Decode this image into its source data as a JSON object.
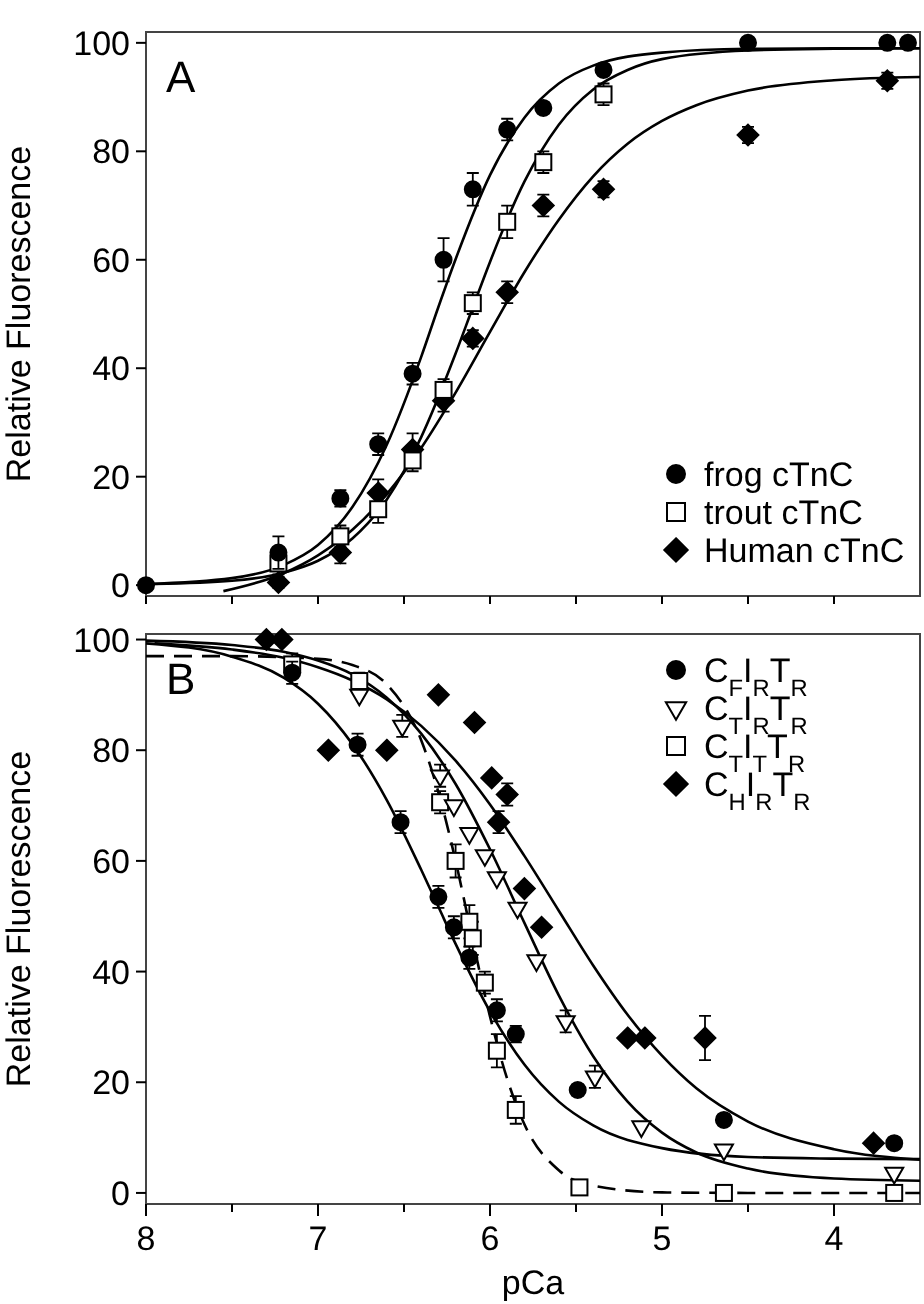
{
  "chart_data": [
    {
      "type": "scatter",
      "ylabel": "Relative Fluorescence",
      "annotations": [
        "A"
      ],
      "xlim": [
        8,
        3.5
      ],
      "ylim": [
        -2,
        102
      ],
      "xticks": [
        {
          "value": 8,
          "label": null
        },
        {
          "value": 7.5,
          "label": null
        },
        {
          "value": 7,
          "label": null
        },
        {
          "value": 6.5,
          "label": null
        },
        {
          "value": 6,
          "label": null
        },
        {
          "value": 5.5,
          "label": null
        },
        {
          "value": 5,
          "label": null
        },
        {
          "value": 4.5,
          "label": null
        },
        {
          "value": 4,
          "label": null
        }
      ],
      "yticks": [
        0,
        20,
        40,
        60,
        80,
        100
      ],
      "tick_labels": "y",
      "legend": "bottom right",
      "grid": false,
      "series": [
        {
          "type": "line",
          "color": "#000000",
          "marker": "none",
          "line_style": "solid",
          "x": [
            8,
            7.5,
            7.2,
            7.0,
            6.8,
            6.6,
            6.4,
            6.3,
            6.2,
            6.0,
            5.8,
            5.6,
            5.4,
            5.0,
            4.5,
            4.0,
            3.5
          ],
          "values": [
            0.2,
            1.3,
            3.7,
            7.4,
            14.4,
            25.9,
            42.1,
            51.3,
            60.1,
            75.6,
            86.2,
            92.5,
            95.8,
            98.2,
            98.9,
            99,
            99
          ]
        },
        {
          "type": "line",
          "color": "#000000",
          "marker": "none",
          "line_style": "solid",
          "x": [
            7.95,
            7.5,
            7.2,
            7.0,
            6.8,
            6.6,
            6.4,
            6.2,
            6.1,
            6.0,
            5.8,
            5.6,
            5.4,
            5.2,
            5.0,
            4.5,
            4.0,
            3.5
          ],
          "values": [
            0.2,
            0.8,
            2.3,
            4.5,
            8.6,
            15.8,
            27.3,
            42.7,
            51.2,
            59.6,
            74.4,
            84.9,
            91.4,
            95,
            97,
            98.6,
            98.9,
            99
          ]
        },
        {
          "type": "line",
          "color": "#000000",
          "marker": "none",
          "line_style": "solid",
          "x": [
            7.55,
            7.2,
            7.0,
            6.8,
            6.6,
            6.4,
            6.2,
            6.0,
            5.8,
            5.6,
            5.4,
            5.2,
            5.0,
            4.8,
            4.5,
            4.0,
            3.5
          ],
          "values": [
            -1.1,
            2.2,
            5.5,
            10.2,
            16.8,
            25.3,
            35.5,
            46.7,
            57.7,
            67.4,
            75.4,
            81.4,
            85.6,
            88.5,
            91.2,
            93.1,
            93.7
          ]
        },
        {
          "type": "scatter",
          "name": "frog cTnC",
          "color": "#000000",
          "marker": "circle",
          "x": [
            8,
            7.23,
            6.87,
            6.65,
            6.45,
            6.27,
            6.1,
            5.9,
            5.69,
            5.34,
            4.5,
            3.69,
            3.57
          ],
          "values": [
            0,
            6,
            16,
            26,
            39,
            60,
            73,
            84,
            88,
            95,
            100,
            100,
            100
          ],
          "errors": [
            null,
            3,
            1.5,
            2,
            2,
            4,
            3,
            2,
            1,
            1,
            1,
            1,
            1
          ]
        },
        {
          "type": "scatter",
          "name": "trout cTnC",
          "color": "#000000",
          "marker": "square",
          "x": [
            7.23,
            6.87,
            6.65,
            6.45,
            6.27,
            6.1,
            5.9,
            5.69,
            5.34
          ],
          "values": [
            4,
            9,
            14,
            23,
            36,
            52,
            67,
            78,
            90.5
          ],
          "errors": [
            2,
            2,
            2.5,
            2,
            2,
            2,
            3,
            2,
            2
          ]
        },
        {
          "type": "scatter",
          "name": "Human cTnC",
          "color": "#000000",
          "marker": "diamond",
          "x": [
            7.23,
            6.87,
            6.65,
            6.45,
            6.27,
            6.1,
            5.9,
            5.69,
            5.34,
            4.5,
            3.69
          ],
          "values": [
            0.5,
            6,
            17,
            25,
            34,
            45.5,
            54,
            70,
            73,
            83,
            93
          ],
          "errors": [
            1,
            2,
            2.5,
            3,
            2,
            1.5,
            2,
            2,
            1.5,
            1.5,
            1.5
          ]
        }
      ]
    },
    {
      "type": "scatter",
      "xlabel": "pCa",
      "ylabel": "Relative Fluorescence",
      "annotations": [
        "B"
      ],
      "xlim": [
        8,
        3.5
      ],
      "ylim": [
        -2,
        101
      ],
      "xticks": [
        8,
        {
          "value": 7.5,
          "label": null
        },
        7,
        {
          "value": 6.5,
          "label": null
        },
        6,
        {
          "value": 5.5,
          "label": null
        },
        5,
        {
          "value": 4.5,
          "label": null
        },
        4
      ],
      "yticks": [
        0,
        20,
        40,
        60,
        80,
        100
      ],
      "legend": "top right",
      "grid": false,
      "series": [
        {
          "type": "line",
          "color": "#000000",
          "marker": "none",
          "line_style": "solid",
          "x": [
            8,
            7.5,
            7.2,
            7.0,
            6.8,
            6.6,
            6.4,
            6.3,
            6.2,
            6.0,
            5.8,
            5.6,
            5.4,
            5.0,
            4.5,
            4.0,
            3.5
          ],
          "values": [
            99.3,
            96.9,
            93.1,
            88.4,
            81.1,
            71,
            58.4,
            51.7,
            45,
            32.8,
            23.2,
            16.5,
            12.2,
            8.1,
            6.5,
            6.2,
            6.1
          ]
        },
        {
          "type": "line",
          "color": "#000000",
          "marker": "none",
          "line_style": "solid",
          "x": [
            8,
            7.5,
            7.2,
            7.0,
            6.8,
            6.6,
            6.4,
            6.2,
            6.0,
            5.8,
            5.6,
            5.4,
            5.2,
            5.0,
            4.8,
            4.5,
            4.0,
            3.5
          ],
          "values": [
            99.8,
            99,
            97.8,
            96.2,
            93.7,
            89.5,
            83,
            73.9,
            62.1,
            48.8,
            35.7,
            24.7,
            16.5,
            10.9,
            7.3,
            4.4,
            2.6,
            2.2
          ]
        },
        {
          "type": "line",
          "color": "#000000",
          "marker": "none",
          "line_style": "dashed",
          "x": [
            8,
            7.5,
            7.0,
            6.8,
            6.6,
            6.4,
            6.3,
            6.2,
            6.1,
            6.0,
            5.9,
            5.8,
            5.6,
            5.4,
            5.0,
            4.5,
            3.5
          ],
          "values": [
            97,
            97,
            96.5,
            95.4,
            91.9,
            81.8,
            72.4,
            60,
            45.6,
            31.9,
            20.6,
            12.4,
            4.1,
            1.3,
            0.1,
            0,
            0
          ]
        },
        {
          "type": "line",
          "color": "#000000",
          "marker": "none",
          "line_style": "solid",
          "x": [
            7.95,
            7.5,
            7.2,
            7.0,
            6.8,
            6.6,
            6.4,
            6.2,
            6.0,
            5.8,
            5.6,
            5.4,
            5.2,
            5.0,
            4.8,
            4.5,
            4.0,
            3.5
          ],
          "values": [
            99.3,
            98.2,
            96.7,
            95,
            92.6,
            89.2,
            84.4,
            78.1,
            70.2,
            60.9,
            51,
            41.1,
            32.2,
            24.8,
            18.9,
            12.9,
            7.9,
            6
          ]
        },
        {
          "type": "scatter",
          "name": "C$_{F}$I$_{R}$T$_{R}$",
          "color": "#000000",
          "marker": "circle",
          "x": [
            7.15,
            6.77,
            6.52,
            6.3,
            6.21,
            6.12,
            5.96,
            5.85,
            5.49,
            4.64,
            3.65
          ],
          "values": [
            94,
            81,
            67,
            53.5,
            48,
            42.5,
            33,
            28.7,
            18.6,
            13.2,
            9
          ],
          "errors": [
            2,
            2,
            2,
            2,
            2,
            2,
            2,
            1.5,
            1,
            1,
            1
          ]
        },
        {
          "type": "scatter",
          "name": "C$_{T}$I$_{R}$T$_{R}$",
          "color": "#000000",
          "marker": "triangle",
          "x": [
            6.76,
            6.51,
            6.29,
            6.21,
            6.12,
            6.03,
            5.96,
            5.84,
            5.73,
            5.56,
            5.39,
            5.12,
            4.64,
            3.65
          ],
          "values": [
            90,
            84.4,
            75.4,
            70,
            65,
            61,
            57,
            51.5,
            42,
            31,
            21,
            12,
            7.8,
            3.6
          ],
          "errors": [
            null,
            2,
            2,
            null,
            null,
            null,
            null,
            null,
            null,
            2,
            2,
            null,
            null,
            null
          ]
        },
        {
          "type": "scatter",
          "name": "C$_{T}$I$_{T}$T$_{R}$",
          "color": "#000000",
          "marker": "square",
          "x": [
            7.15,
            6.76,
            6.29,
            6.2,
            6.12,
            6.1,
            6.03,
            5.96,
            5.85,
            5.48,
            4.64,
            3.65
          ],
          "values": [
            95.5,
            92.5,
            70.6,
            60,
            49,
            46,
            38,
            25.7,
            15,
            1,
            0,
            0
          ],
          "errors": [
            2,
            1.5,
            2,
            3,
            3,
            3,
            2,
            3,
            2.5,
            null,
            null,
            null
          ]
        },
        {
          "type": "scatter",
          "name": "C$_{H}$I$_{R}$T$_{R}$",
          "color": "#000000",
          "marker": "diamond",
          "x": [
            7.3,
            7.21,
            6.94,
            6.6,
            6.3,
            6.09,
            5.99,
            5.95,
            5.9,
            5.8,
            5.7,
            5.2,
            5.1,
            4.75,
            3.77
          ],
          "values": [
            100,
            100,
            80,
            80,
            90,
            85,
            75,
            67,
            72,
            55,
            48,
            28,
            28,
            28,
            9
          ],
          "errors": [
            null,
            null,
            null,
            null,
            null,
            null,
            null,
            2,
            2,
            null,
            null,
            null,
            null,
            4,
            null
          ]
        }
      ]
    }
  ]
}
